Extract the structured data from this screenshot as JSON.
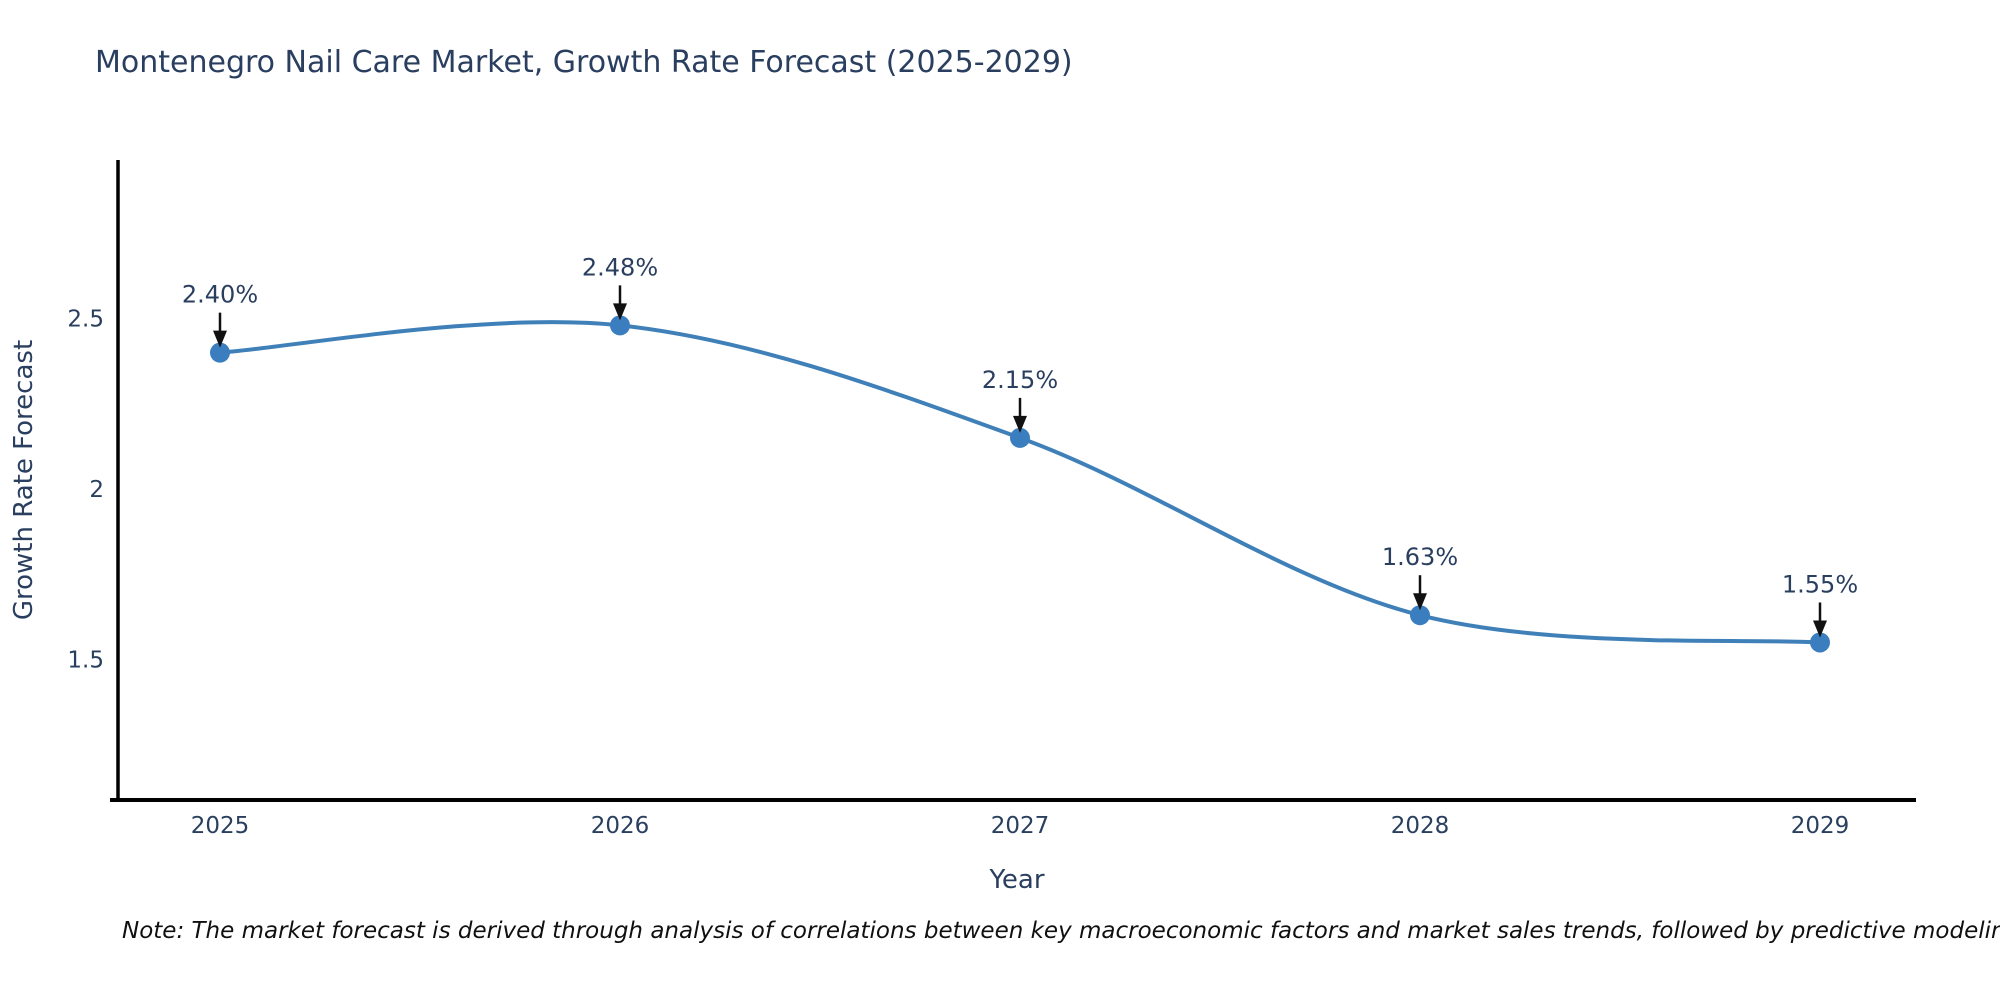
{
  "chart_data": {
    "type": "line",
    "title": "Montenegro Nail Care Market, Growth Rate Forecast (2025-2029)",
    "xlabel": "Year",
    "ylabel": "Growth Rate Forecast",
    "categories": [
      "2025",
      "2026",
      "2027",
      "2028",
      "2029"
    ],
    "series": [
      {
        "name": "Growth Rate Forecast",
        "values": [
          2.4,
          2.48,
          2.15,
          1.63,
          1.55
        ],
        "point_labels": [
          "2.40%",
          "2.48%",
          "2.15%",
          "1.63%",
          "1.55%"
        ]
      }
    ],
    "yticks": [
      2.5,
      2.0,
      1.5
    ],
    "ytick_labels": [
      "2.5",
      "2",
      "1.5"
    ],
    "ylim": [
      1.088,
      2.965
    ],
    "grid": false,
    "legend_position": "none",
    "line_shape": "spline",
    "annotation_style": "value label with downward arrow to each marker",
    "note": "Note: The market forecast is derived through analysis of correlations between key macroeconomic factors and market sales trends, followed by predictive modeling to project future sales",
    "colors": {
      "line": "#4080b8",
      "marker": "#3a7ebf",
      "axis": "#000000",
      "text": "#2a3f5f",
      "annotation_arrow": "#111111",
      "note_text": "#101010"
    }
  }
}
